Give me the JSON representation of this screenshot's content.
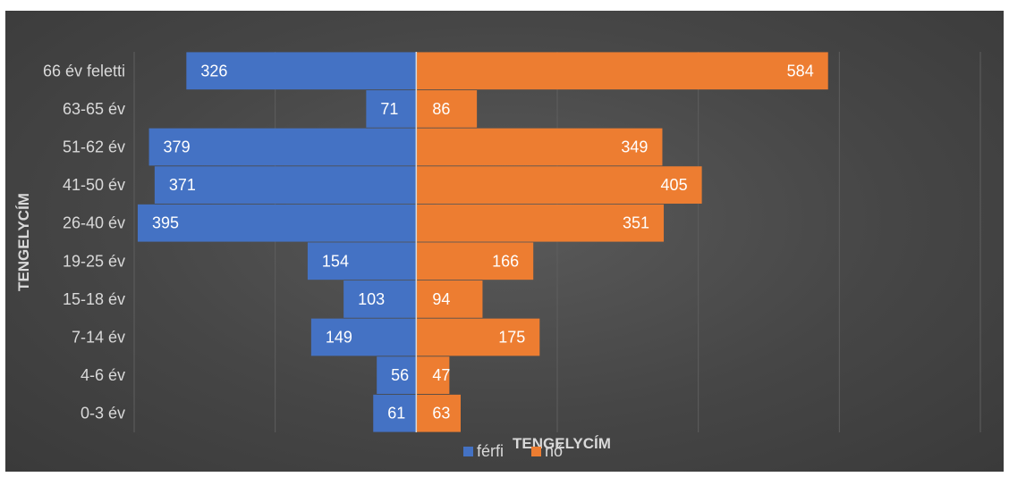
{
  "chart_data": {
    "type": "bar",
    "orientation": "horizontal",
    "layout": "population-pyramid",
    "categories": [
      "0-3 év",
      "4-6 év",
      "7-14 év",
      "15-18 év",
      "19-25 év",
      "26-40 év",
      "41-50 év",
      "51-62 év",
      "63-65 év",
      "66 év feletti"
    ],
    "series": [
      {
        "name": "férfi",
        "color": "#4472C4",
        "values": [
          61,
          56,
          149,
          103,
          154,
          395,
          371,
          379,
          71,
          326
        ]
      },
      {
        "name": "nő",
        "color": "#ED7D31",
        "values": [
          63,
          47,
          175,
          94,
          166,
          351,
          405,
          349,
          86,
          584
        ]
      }
    ],
    "xlabel": "TENGELYCÍM",
    "ylabel": "TENGELYCÍM",
    "xlim": [
      -400,
      800
    ],
    "grid": true,
    "legend": "bottom",
    "data_labels": true,
    "background": "#464646",
    "text_color": "#D9D9D9"
  }
}
